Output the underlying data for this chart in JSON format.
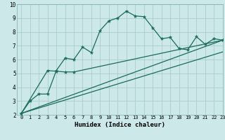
{
  "title": "",
  "xlabel": "Humidex (Indice chaleur)",
  "bg_color": "#cce8e8",
  "grid_color": "#aacccc",
  "line_color": "#1a6b5a",
  "xlim": [
    -0.5,
    23
  ],
  "ylim": [
    2,
    10
  ],
  "xticks": [
    0,
    1,
    2,
    3,
    4,
    5,
    6,
    7,
    8,
    9,
    10,
    11,
    12,
    13,
    14,
    15,
    16,
    17,
    18,
    19,
    20,
    21,
    22,
    23
  ],
  "yticks": [
    2,
    3,
    4,
    5,
    6,
    7,
    8,
    9,
    10
  ],
  "line1_x": [
    0,
    1,
    2,
    3,
    4,
    5,
    6,
    7,
    8,
    9,
    10,
    11,
    12,
    13,
    14,
    15,
    16,
    17,
    18,
    19,
    20,
    21,
    22,
    23
  ],
  "line1_y": [
    2.1,
    3.0,
    3.5,
    3.5,
    5.2,
    6.1,
    6.0,
    6.9,
    6.5,
    8.1,
    8.8,
    9.0,
    9.5,
    9.15,
    9.1,
    8.3,
    7.5,
    7.6,
    6.8,
    6.7,
    7.65,
    7.1,
    7.5,
    7.4
  ],
  "line2_x": [
    0,
    3,
    4,
    5,
    6,
    23
  ],
  "line2_y": [
    2.1,
    5.2,
    5.15,
    5.1,
    5.1,
    7.4
  ],
  "line3_x": [
    0,
    23
  ],
  "line3_y": [
    2.1,
    7.4
  ],
  "line4_x": [
    0,
    23
  ],
  "line4_y": [
    2.1,
    6.55
  ]
}
